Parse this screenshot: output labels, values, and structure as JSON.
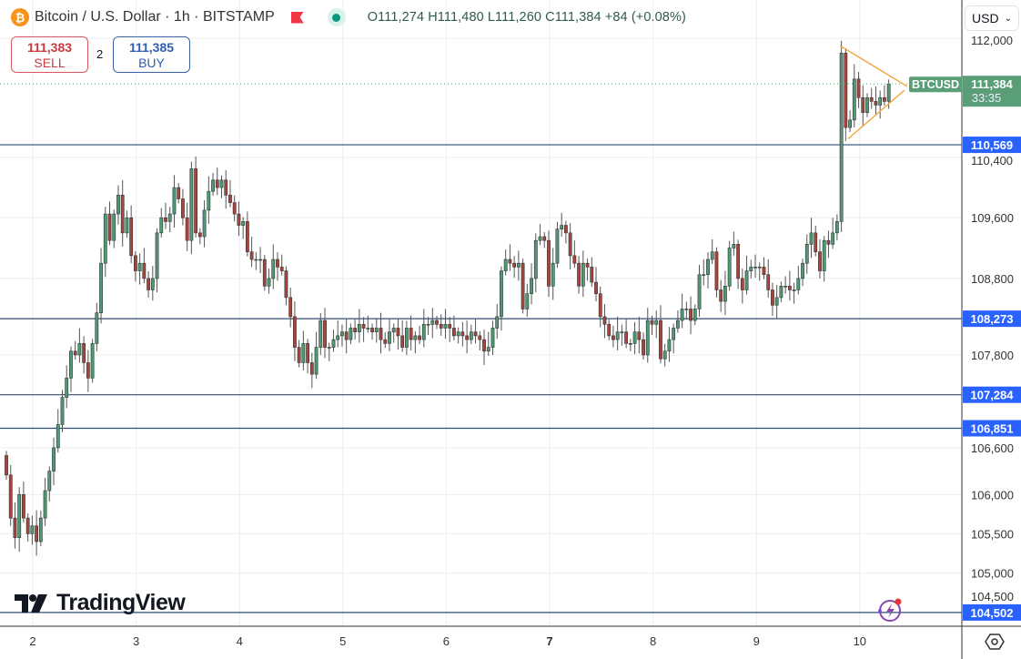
{
  "header": {
    "symbol_icon": "bitcoin-icon",
    "title": "Bitcoin / U.S. Dollar · 1h · BITSTAMP",
    "ohlc": "O111,274 H111,480 L111,260 C111,384 +84 (+0.08%)"
  },
  "trade": {
    "sell_price": "111,383",
    "sell_label": "SELL",
    "spread": "2",
    "buy_price": "111,385",
    "buy_label": "BUY"
  },
  "currency": "USD",
  "logo": "TradingView",
  "colors": {
    "up": "#4e9a74",
    "down": "#a8443c",
    "level": "#2e4f78",
    "level_label": "#2962ff",
    "triangle": "#f5a742",
    "last_price": "#5a9e78"
  },
  "chart_data": {
    "type": "candlestick",
    "interval": "1h",
    "scale": "log",
    "ylim": [
      104300,
      112350
    ],
    "y_ticks": [
      "112,000",
      "110,400",
      "109,600",
      "108,800",
      "107,800",
      "106,600",
      "106,000",
      "105,500",
      "105,000",
      "104,500"
    ],
    "x_ticks": [
      "2",
      "3",
      "4",
      "5",
      "6",
      "7",
      "8",
      "9",
      "10"
    ],
    "grid": true,
    "first_close_index_day_offset": 0,
    "closes": [
      106250,
      105700,
      105450,
      106000,
      105700,
      105500,
      105600,
      105400,
      105700,
      106050,
      106300,
      106600,
      106900,
      107250,
      107500,
      107850,
      107800,
      107950,
      107700,
      107500,
      107950,
      108350,
      109000,
      109650,
      109300,
      109650,
      109900,
      109400,
      109600,
      109100,
      108900,
      109000,
      108800,
      108650,
      108800,
      109400,
      109600,
      109550,
      109650,
      110000,
      109850,
      109600,
      109300,
      110250,
      109400,
      109350,
      109700,
      109950,
      110100,
      110000,
      110100,
      109900,
      109800,
      109650,
      109500,
      109550,
      109150,
      109050,
      109050,
      109050,
      108700,
      108800,
      109050,
      108950,
      108900,
      108550,
      108300,
      107900,
      107700,
      107950,
      107700,
      107550,
      107900,
      108250,
      107900,
      107900,
      108000,
      108050,
      108100,
      108000,
      108150,
      108100,
      108200,
      108150,
      108150,
      108100,
      108150,
      108000,
      107950,
      108100,
      108150,
      108050,
      107900,
      108150,
      108000,
      108050,
      108000,
      108200,
      108200,
      108250,
      108200,
      108150,
      108200,
      108150,
      108050,
      108100,
      108050,
      108000,
      108100,
      108050,
      108000,
      107850,
      107900,
      108150,
      108300,
      108900,
      109050,
      109000,
      108950,
      109000,
      108400,
      108600,
      108800,
      109300,
      109350,
      109300,
      108700,
      109000,
      109450,
      109500,
      109400,
      109100,
      109000,
      108700,
      109000,
      108950,
      108750,
      108600,
      108300,
      108200,
      108050,
      108000,
      108100,
      108100,
      107950,
      107950,
      108100,
      108000,
      107800,
      108250,
      108200,
      108250,
      107750,
      107850,
      108000,
      108150,
      108250,
      108400,
      108400,
      108250,
      108400,
      108850,
      108850,
      109050,
      109150,
      108650,
      108500,
      108700,
      109200,
      109250,
      108800,
      108650,
      108900,
      108950,
      108950,
      108950,
      108850,
      108650,
      108450,
      108550,
      108700,
      108700,
      108650,
      108650,
      108800,
      109000,
      109250,
      109400,
      109150,
      108900,
      109300,
      109250,
      109400,
      109550,
      111800,
      110800,
      110900,
      111450,
      111200,
      111000,
      111200,
      111150,
      111100,
      111200,
      111150,
      111384
    ],
    "horizontal_levels": [
      {
        "value": 110569,
        "label": "110,569"
      },
      {
        "value": 108273,
        "label": "108,273"
      },
      {
        "value": 107284,
        "label": "107,284"
      },
      {
        "value": 106851,
        "label": "106,851"
      },
      {
        "value": 104502,
        "label": "104,502"
      }
    ],
    "last_price": {
      "symbol": "BTCUSD",
      "value": 111384,
      "label": "111,384",
      "countdown": "33:35"
    },
    "pattern": "symmetrical-triangle",
    "triangle": {
      "upper": [
        111900,
        111350
      ],
      "lower": [
        110650,
        111300
      ]
    }
  }
}
